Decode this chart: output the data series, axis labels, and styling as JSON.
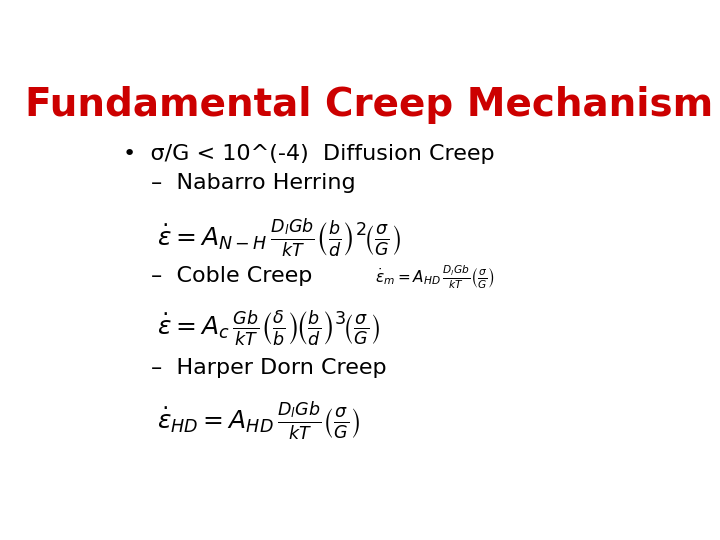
{
  "title": "Fundamental Creep Mechanism",
  "title_color": "#cc0000",
  "title_fontsize": 28,
  "bg_color": "#ffffff",
  "bullet_text": "•  σ/G < 10^(-4)  Diffusion Creep",
  "sub1": "–  Nabarro Herring",
  "sub2": "–  Coble Creep",
  "sub3": "–  Harper Dorn Creep",
  "eq1": "$\\dot{\\varepsilon} = A_{N-H}\\,\\frac{D_l Gb}{kT}\\left(\\frac{b}{d}\\right)^{2}\\!\\left(\\frac{\\sigma}{G}\\right)$",
  "eq2_small": "$\\dot{\\varepsilon}_{m} = A_{HD}\\,\\frac{D_l Gb}{kT}\\left(\\frac{\\sigma}{G}\\right)$",
  "eq3": "$\\dot{\\varepsilon} = A_c\\,\\frac{Gb}{kT}\\left(\\frac{\\delta}{b}\\right)\\!\\left(\\frac{b}{d}\\right)^{3}\\!\\left(\\frac{\\sigma}{G}\\right)$",
  "eq4": "$\\dot{\\varepsilon}_{HD} = A_{HD}\\,\\frac{D_l Gb}{kT}\\left(\\frac{\\sigma}{G}\\right)$",
  "text_color": "#000000",
  "text_fontsize": 16,
  "eq_fontsize": 18,
  "small_eq_fontsize": 11
}
